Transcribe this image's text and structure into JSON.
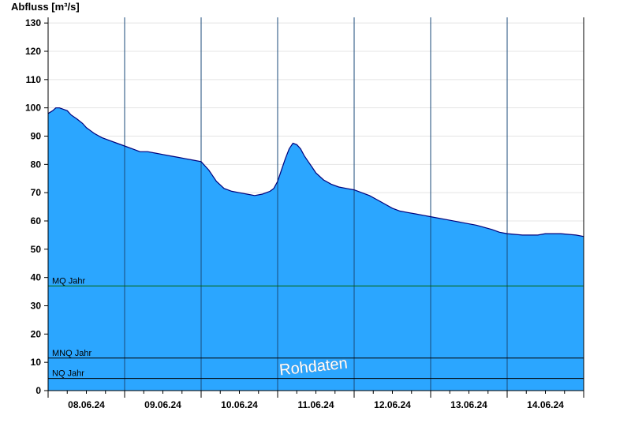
{
  "chart_data": {
    "type": "area",
    "ylabel": "Abfluss [m³/s]",
    "ylim": [
      0,
      132
    ],
    "yticks": [
      0,
      10,
      20,
      30,
      40,
      50,
      60,
      70,
      80,
      90,
      100,
      110,
      120,
      130
    ],
    "xlim": [
      0,
      7
    ],
    "day_labels": [
      "08.06.24",
      "09.06.24",
      "10.06.24",
      "11.06.24",
      "12.06.24",
      "13.06.24",
      "14.06.24"
    ],
    "grid": true,
    "fill_color": "#2ba6ff",
    "line_color": "#00007a",
    "series": [
      {
        "x": [
          0,
          0.06,
          0.1,
          0.15,
          0.25,
          0.3,
          0.38,
          0.45,
          0.5,
          0.55,
          0.6,
          0.7,
          0.8,
          0.9,
          1.0,
          1.1,
          1.2,
          1.3,
          1.4,
          1.5,
          1.6,
          1.7,
          1.8,
          1.9,
          2.0,
          2.05,
          2.1,
          2.2,
          2.3,
          2.4,
          2.5,
          2.6,
          2.7,
          2.8,
          2.9,
          2.95,
          3.0,
          3.05,
          3.1,
          3.15,
          3.2,
          3.25,
          3.3,
          3.35,
          3.4,
          3.45,
          3.5,
          3.6,
          3.7,
          3.8,
          3.9,
          4.0,
          4.1,
          4.2,
          4.3,
          4.4,
          4.5,
          4.6,
          4.7,
          4.8,
          4.9,
          5.0,
          5.2,
          5.4,
          5.6,
          5.8,
          5.9,
          6.0,
          6.2,
          6.4,
          6.5,
          6.7,
          6.9,
          7.0
        ],
        "values": [
          98,
          99,
          100,
          100,
          99,
          97.5,
          96,
          94.5,
          93,
          92,
          91,
          89.5,
          88.5,
          87.5,
          86.5,
          85.5,
          84.5,
          84.5,
          84,
          83.5,
          83,
          82.5,
          82,
          81.5,
          81,
          79.5,
          78,
          74,
          71.5,
          70.5,
          70,
          69.5,
          69,
          69.5,
          70.5,
          71.5,
          74,
          78,
          82,
          85.5,
          87.5,
          87,
          85.5,
          83,
          81,
          79,
          77,
          74.5,
          73,
          72,
          71.5,
          71,
          70,
          69,
          67.5,
          66,
          64.5,
          63.5,
          63,
          62.5,
          62,
          61.5,
          60.5,
          59.5,
          58.5,
          57,
          56,
          55.5,
          55,
          55,
          55.5,
          55.5,
          55,
          54.5
        ]
      }
    ],
    "reference_lines": [
      {
        "name": "MQ Jahr",
        "value": 37,
        "color": "#006400"
      },
      {
        "name": "MNQ Jahr",
        "value": 11.5,
        "color": "#000000"
      },
      {
        "name": "NQ Jahr",
        "value": 4.3,
        "color": "#000000"
      }
    ],
    "watermark": "Rohdaten"
  }
}
